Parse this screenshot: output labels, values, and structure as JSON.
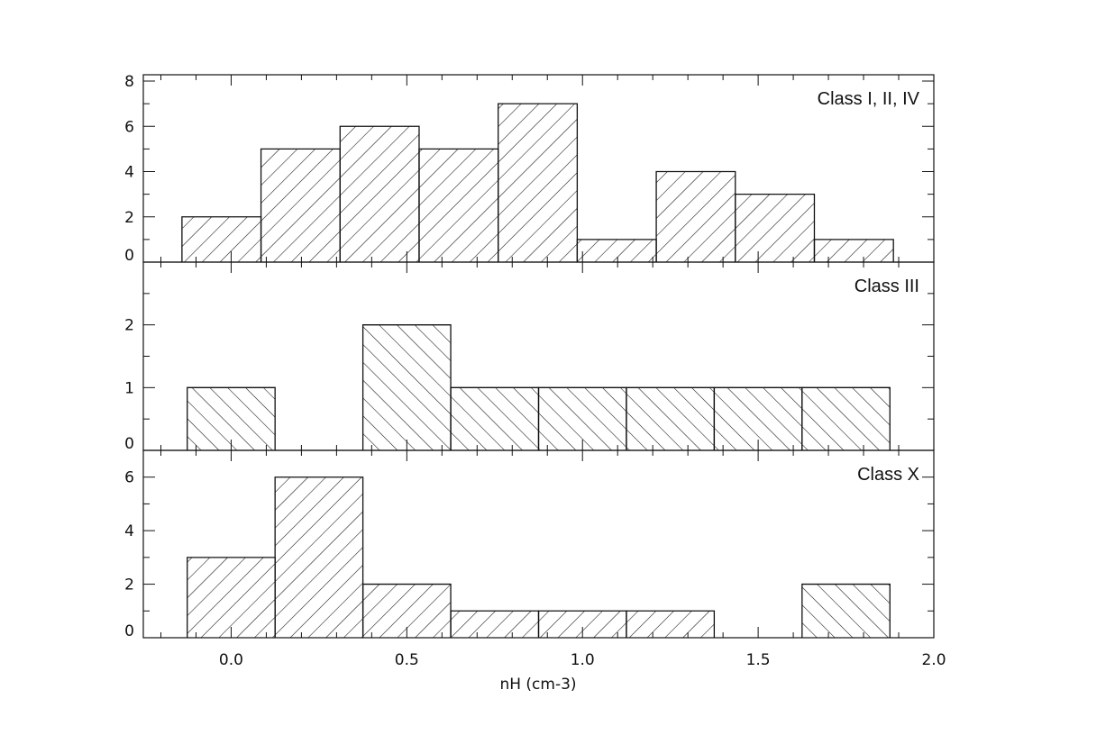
{
  "chart_data": {
    "type": "bar",
    "xlabel": "nH (cm-3)",
    "xlim": [
      -0.25,
      2.0
    ],
    "xticks": [
      "0.0",
      "0.5",
      "1.0",
      "1.5",
      "2.0"
    ],
    "xtick_values": [
      0.0,
      0.5,
      1.0,
      1.5,
      2.0
    ],
    "stacked_panels": true,
    "panels": [
      {
        "label": "Class I, II, IV",
        "ylim": [
          0,
          8
        ],
        "yticks": [
          "0",
          "2",
          "4",
          "6",
          "8"
        ],
        "ytick_values": [
          0,
          2,
          4,
          6,
          8
        ],
        "hatch": "backslash",
        "bins": [
          {
            "x0": -0.14,
            "x1": 0.085,
            "value": 2
          },
          {
            "x0": 0.085,
            "x1": 0.31,
            "value": 5
          },
          {
            "x0": 0.31,
            "x1": 0.535,
            "value": 6
          },
          {
            "x0": 0.535,
            "x1": 0.76,
            "value": 5
          },
          {
            "x0": 0.76,
            "x1": 0.985,
            "value": 7
          },
          {
            "x0": 0.985,
            "x1": 1.21,
            "value": 1
          },
          {
            "x0": 1.21,
            "x1": 1.435,
            "value": 4
          },
          {
            "x0": 1.435,
            "x1": 1.66,
            "value": 3
          },
          {
            "x0": 1.66,
            "x1": 1.885,
            "value": 1
          }
        ]
      },
      {
        "label": "Class III",
        "ylim": [
          0,
          3
        ],
        "yticks": [
          "0",
          "1",
          "2"
        ],
        "ytick_values": [
          0,
          1,
          2
        ],
        "hatch": "slash",
        "bins": [
          {
            "x0": -0.125,
            "x1": 0.125,
            "value": 1
          },
          {
            "x0": 0.375,
            "x1": 0.625,
            "value": 2
          },
          {
            "x0": 0.625,
            "x1": 0.875,
            "value": 1
          },
          {
            "x0": 0.875,
            "x1": 1.125,
            "value": 1
          },
          {
            "x0": 1.125,
            "x1": 1.375,
            "value": 1
          },
          {
            "x0": 1.375,
            "x1": 1.625,
            "value": 1
          },
          {
            "x0": 1.625,
            "x1": 1.875,
            "value": 1
          }
        ]
      },
      {
        "label": "Class X",
        "ylim": [
          0,
          7
        ],
        "yticks": [
          "0",
          "2",
          "4",
          "6"
        ],
        "ytick_values": [
          0,
          2,
          4,
          6
        ],
        "hatch": "backslash",
        "bins": [
          {
            "x0": -0.125,
            "x1": 0.125,
            "value": 3,
            "hatch": "backslash"
          },
          {
            "x0": 0.125,
            "x1": 0.375,
            "value": 6,
            "hatch": "backslash"
          },
          {
            "x0": 0.375,
            "x1": 0.625,
            "value": 2,
            "hatch": "backslash"
          },
          {
            "x0": 0.625,
            "x1": 0.875,
            "value": 1,
            "hatch": "backslash"
          },
          {
            "x0": 0.875,
            "x1": 1.125,
            "value": 1,
            "hatch": "backslash"
          },
          {
            "x0": 1.125,
            "x1": 1.375,
            "value": 1,
            "hatch": "backslash"
          },
          {
            "x0": 1.625,
            "x1": 1.875,
            "value": 2,
            "hatch": "slash"
          }
        ]
      }
    ]
  }
}
